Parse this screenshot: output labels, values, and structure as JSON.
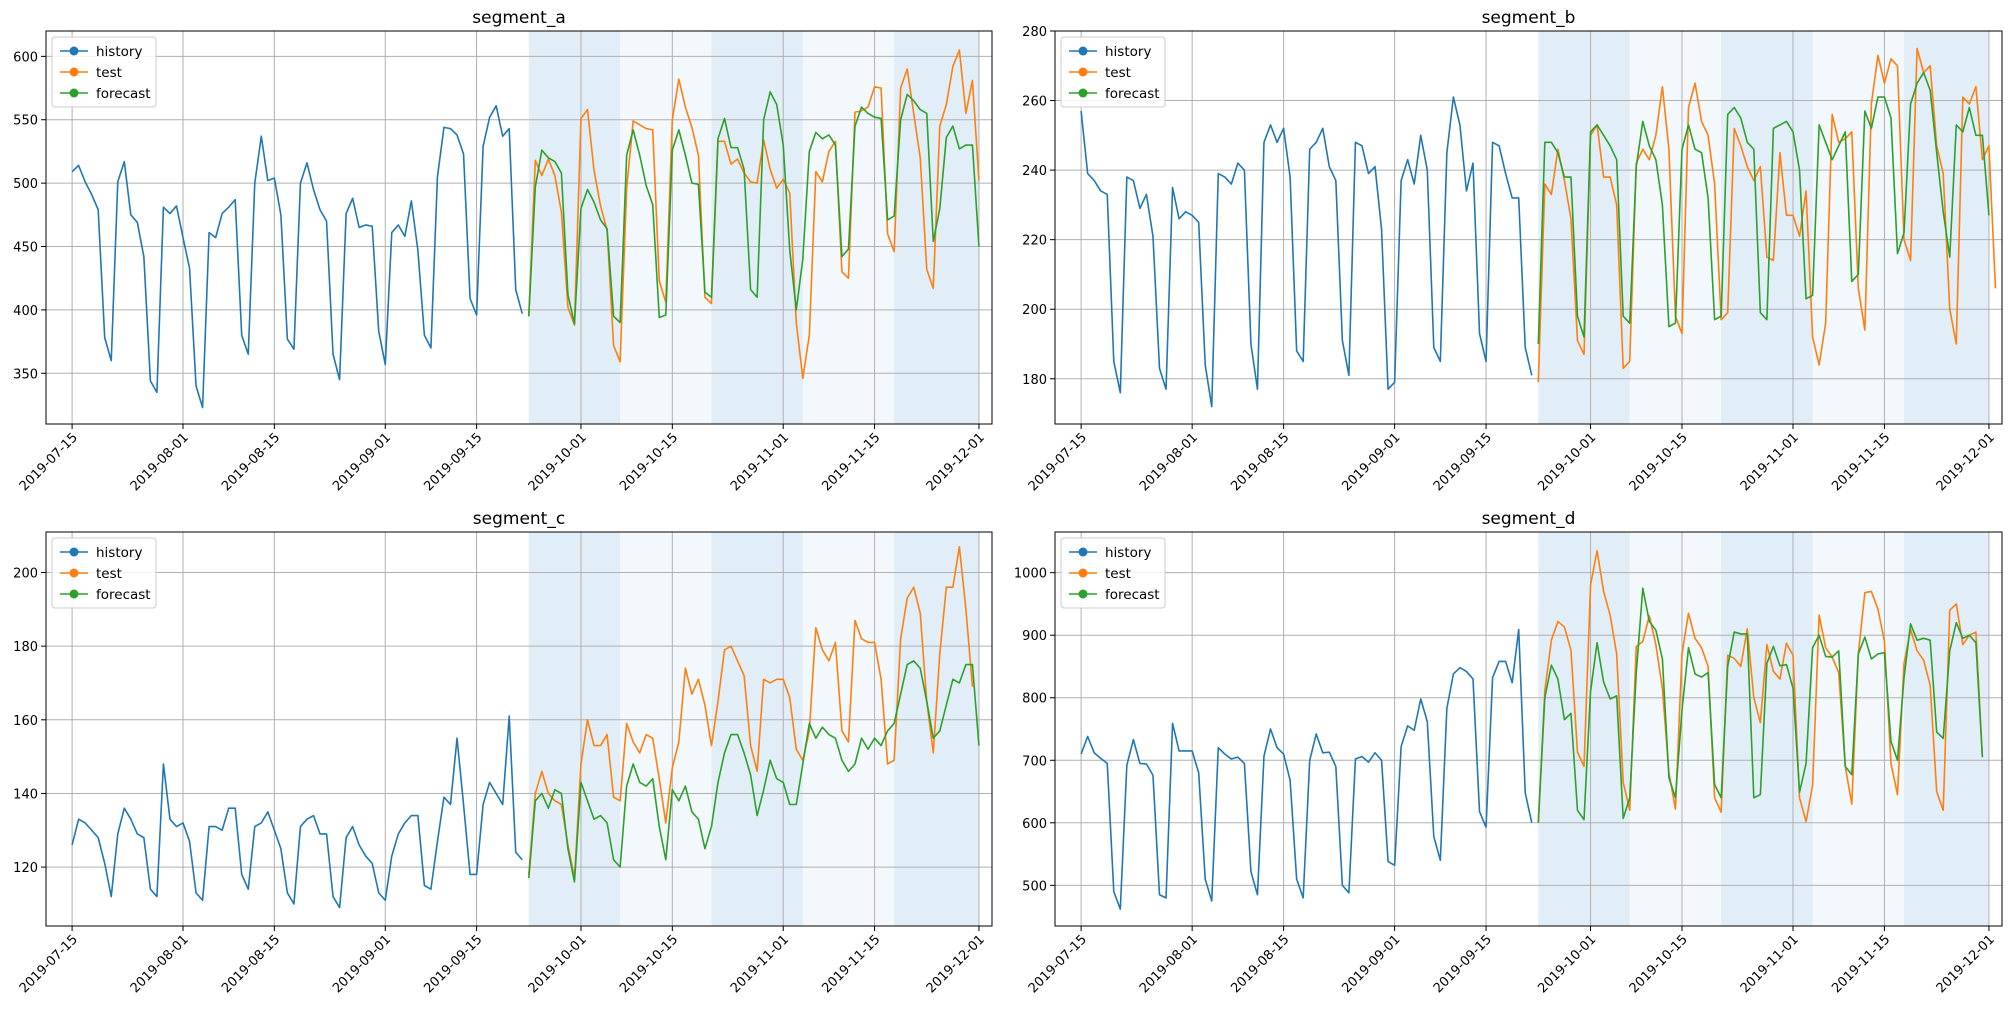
{
  "colors": {
    "history": "#1f77b4",
    "test": "#ff7f0e",
    "forecast": "#2ca02c",
    "band": "#cfe3f2",
    "grid": "#b0b0b0"
  },
  "chart_data": [
    {
      "type": "line",
      "title": "segment_a",
      "legend": "upper-left",
      "grid": true,
      "ylim": [
        310,
        620
      ],
      "yticks": [
        "350",
        "400",
        "450",
        "500",
        "550",
        "600"
      ],
      "xlim": [
        "2019-07-11",
        "2019-12-03"
      ],
      "xticks": [
        "2019-07-15",
        "2019-08-01",
        "2019-08-15",
        "2019-09-01",
        "2019-09-15",
        "2019-10-01",
        "2019-10-15",
        "2019-11-01",
        "2019-11-15",
        "2019-12-01"
      ],
      "highlight_bands": [
        [
          "2019-09-23",
          "2019-10-07"
        ],
        [
          "2019-10-21",
          "2019-11-04"
        ],
        [
          "2019-11-18",
          "2019-12-01"
        ]
      ],
      "shade_range": [
        "2019-09-23",
        "2019-12-01"
      ],
      "series": [
        {
          "name": "history",
          "x_start": "2019-07-15",
          "values": [
            509,
            514,
            501,
            491,
            479,
            378,
            360,
            501,
            517,
            475,
            469,
            442,
            344,
            335,
            481,
            476,
            482,
            457,
            433,
            340,
            323,
            461,
            457,
            476,
            481,
            487,
            380,
            365,
            500,
            537,
            502,
            504,
            475,
            377,
            369,
            500,
            516,
            495,
            479,
            470,
            365,
            345,
            476,
            488,
            465,
            467,
            466,
            383,
            357,
            461,
            467,
            458,
            486,
            447,
            380,
            370,
            505,
            544,
            543,
            538,
            523,
            409,
            396,
            529,
            552,
            561,
            537,
            543,
            416,
            397
          ]
        },
        {
          "name": "test",
          "x_start": "2019-09-23",
          "values": [
            395,
            518,
            506,
            519,
            506,
            477,
            402,
            388,
            551,
            558,
            510,
            482,
            463,
            372,
            359,
            496,
            549,
            546,
            543,
            542,
            423,
            406,
            550,
            582,
            560,
            544,
            522,
            410,
            405,
            533,
            533,
            515,
            519,
            508,
            501,
            500,
            534,
            511,
            496,
            503,
            492,
            390,
            346,
            380,
            509,
            501,
            525,
            533,
            430,
            425,
            556,
            557,
            560,
            576,
            575,
            460,
            446,
            575,
            590,
            555,
            520,
            432,
            417,
            545,
            562,
            592,
            605,
            555,
            581,
            502
          ]
        },
        {
          "name": "forecast",
          "x_start": "2019-09-23",
          "values": [
            395,
            497,
            526,
            520,
            517,
            508,
            412,
            389,
            480,
            495,
            485,
            471,
            464,
            395,
            390,
            522,
            542,
            522,
            498,
            483,
            394,
            396,
            526,
            542,
            522,
            500,
            499,
            414,
            410,
            535,
            551,
            528,
            528,
            511,
            416,
            410,
            550,
            572,
            562,
            530,
            447,
            400,
            440,
            525,
            540,
            535,
            538,
            530,
            442,
            448,
            545,
            560,
            555,
            552,
            551,
            471,
            474,
            550,
            570,
            565,
            558,
            555,
            454,
            480,
            536,
            545,
            527,
            530,
            530,
            450
          ]
        }
      ]
    },
    {
      "type": "line",
      "title": "segment_b",
      "legend": "upper-left",
      "grid": true,
      "ylim": [
        167,
        280
      ],
      "yticks": [
        "180",
        "200",
        "220",
        "240",
        "260",
        "280"
      ],
      "xlim": [
        "2019-07-11",
        "2019-12-03"
      ],
      "xticks": [
        "2019-07-15",
        "2019-08-01",
        "2019-08-15",
        "2019-09-01",
        "2019-09-15",
        "2019-10-01",
        "2019-10-15",
        "2019-11-01",
        "2019-11-15",
        "2019-12-01"
      ],
      "highlight_bands": [
        [
          "2019-09-23",
          "2019-10-07"
        ],
        [
          "2019-10-21",
          "2019-11-04"
        ],
        [
          "2019-11-18",
          "2019-12-01"
        ]
      ],
      "shade_range": [
        "2019-09-23",
        "2019-12-01"
      ],
      "series": [
        {
          "name": "history",
          "x_start": "2019-07-15",
          "values": [
            257,
            239,
            237,
            234,
            233,
            185,
            176,
            238,
            237,
            229,
            233,
            221,
            183,
            177,
            235,
            226,
            228,
            227,
            225,
            184,
            172,
            239,
            238,
            236,
            242,
            240,
            190,
            177,
            248,
            253,
            248,
            252,
            238,
            188,
            185,
            246,
            248,
            252,
            241,
            237,
            191,
            181,
            248,
            247,
            239,
            241,
            223,
            177,
            179,
            237,
            243,
            236,
            250,
            240,
            189,
            185,
            245,
            261,
            253,
            234,
            242,
            193,
            185,
            248,
            247,
            239,
            232,
            232,
            189,
            181
          ]
        },
        {
          "name": "test",
          "x_start": "2019-09-23",
          "values": [
            179,
            236,
            233,
            246,
            237,
            226,
            191,
            187,
            250,
            253,
            238,
            238,
            230,
            183,
            185,
            242,
            246,
            243,
            250,
            264,
            246,
            198,
            193,
            258,
            265,
            254,
            250,
            236,
            197,
            199,
            252,
            247,
            241,
            237,
            241,
            215,
            214,
            245,
            227,
            227,
            221,
            234,
            192,
            184,
            196,
            256,
            248,
            249,
            251,
            206,
            194,
            259,
            273,
            265,
            272,
            270,
            220,
            214,
            275,
            268,
            270,
            247,
            239,
            200,
            190,
            261,
            259,
            264,
            243,
            247,
            206
          ]
        },
        {
          "name": "forecast",
          "x_start": "2019-09-23",
          "values": [
            190,
            248,
            248,
            245,
            238,
            238,
            198,
            192,
            251,
            253,
            250,
            247,
            243,
            198,
            196,
            241,
            254,
            247,
            243,
            230,
            195,
            196,
            246,
            253,
            246,
            245,
            232,
            197,
            198,
            256,
            258,
            255,
            248,
            246,
            199,
            197,
            252,
            253,
            254,
            251,
            240,
            203,
            204,
            253,
            248,
            243,
            247,
            251,
            208,
            210,
            257,
            252,
            261,
            261,
            255,
            216,
            222,
            259,
            265,
            268,
            263,
            245,
            228,
            215,
            253,
            251,
            258,
            250,
            250,
            227
          ]
        }
      ]
    },
    {
      "type": "line",
      "title": "segment_c",
      "legend": "upper-left",
      "grid": true,
      "ylim": [
        104,
        211
      ],
      "yticks": [
        "120",
        "140",
        "160",
        "180",
        "200"
      ],
      "xlim": [
        "2019-07-11",
        "2019-12-03"
      ],
      "xticks": [
        "2019-07-15",
        "2019-08-01",
        "2019-08-15",
        "2019-09-01",
        "2019-09-15",
        "2019-10-01",
        "2019-10-15",
        "2019-11-01",
        "2019-11-15",
        "2019-12-01"
      ],
      "highlight_bands": [
        [
          "2019-09-23",
          "2019-10-07"
        ],
        [
          "2019-10-21",
          "2019-11-04"
        ],
        [
          "2019-11-18",
          "2019-12-01"
        ]
      ],
      "shade_range": [
        "2019-09-23",
        "2019-12-01"
      ],
      "series": [
        {
          "name": "history",
          "x_start": "2019-07-15",
          "values": [
            126,
            133,
            132,
            130,
            128,
            121,
            112,
            129,
            136,
            133,
            129,
            128,
            114,
            112,
            148,
            133,
            131,
            132,
            127,
            113,
            111,
            131,
            131,
            130,
            136,
            136,
            118,
            114,
            131,
            132,
            135,
            130,
            125,
            113,
            110,
            131,
            133,
            134,
            129,
            129,
            112,
            109,
            128,
            131,
            126,
            123,
            121,
            113,
            111,
            123,
            129,
            132,
            134,
            134,
            115,
            114,
            127,
            139,
            137,
            155,
            137,
            118,
            118,
            137,
            143,
            140,
            137,
            161,
            124,
            122
          ]
        },
        {
          "name": "test",
          "x_start": "2019-09-23",
          "values": [
            118,
            140,
            146,
            140,
            138,
            137,
            126,
            117,
            148,
            160,
            153,
            153,
            156,
            139,
            138,
            159,
            154,
            151,
            156,
            155,
            144,
            132,
            147,
            154,
            174,
            167,
            171,
            164,
            153,
            165,
            179,
            180,
            176,
            172,
            153,
            146,
            171,
            170,
            171,
            171,
            166,
            152,
            149,
            157,
            185,
            179,
            176,
            181,
            157,
            154,
            187,
            182,
            181,
            181,
            171,
            148,
            149,
            182,
            193,
            196,
            189,
            165,
            151,
            178,
            196,
            196,
            207,
            190,
            169
          ]
        },
        {
          "name": "forecast",
          "x_start": "2019-09-23",
          "values": [
            117,
            138,
            140,
            136,
            141,
            140,
            125,
            116,
            143,
            138,
            133,
            134,
            132,
            122,
            120,
            142,
            148,
            143,
            142,
            144,
            131,
            122,
            141,
            138,
            142,
            135,
            133,
            125,
            131,
            143,
            151,
            156,
            156,
            151,
            145,
            134,
            141,
            149,
            144,
            143,
            137,
            137,
            148,
            159,
            155,
            158,
            156,
            155,
            149,
            146,
            148,
            155,
            152,
            155,
            153,
            157,
            159,
            167,
            175,
            176,
            174,
            165,
            155,
            157,
            164,
            171,
            170,
            175,
            175,
            153
          ]
        }
      ]
    },
    {
      "type": "line",
      "title": "segment_d",
      "legend": "upper-left",
      "grid": true,
      "ylim": [
        435,
        1065
      ],
      "yticks": [
        "500",
        "600",
        "700",
        "800",
        "900",
        "1000"
      ],
      "xlim": [
        "2019-07-11",
        "2019-12-03"
      ],
      "xticks": [
        "2019-07-15",
        "2019-08-01",
        "2019-08-15",
        "2019-09-01",
        "2019-09-15",
        "2019-10-01",
        "2019-10-15",
        "2019-11-01",
        "2019-11-15",
        "2019-12-01"
      ],
      "highlight_bands": [
        [
          "2019-09-23",
          "2019-10-07"
        ],
        [
          "2019-10-21",
          "2019-11-04"
        ],
        [
          "2019-11-18",
          "2019-12-01"
        ]
      ],
      "shade_range": [
        "2019-09-23",
        "2019-12-01"
      ],
      "series": [
        {
          "name": "history",
          "x_start": "2019-07-15",
          "values": [
            710,
            738,
            712,
            703,
            695,
            490,
            462,
            692,
            733,
            695,
            694,
            676,
            485,
            480,
            759,
            715,
            715,
            715,
            680,
            510,
            475,
            720,
            710,
            702,
            705,
            695,
            522,
            485,
            707,
            750,
            720,
            710,
            668,
            510,
            480,
            700,
            742,
            712,
            713,
            690,
            500,
            488,
            702,
            706,
            697,
            712,
            700,
            538,
            532,
            722,
            755,
            748,
            798,
            762,
            578,
            540,
            783,
            838,
            848,
            842,
            830,
            618,
            593,
            832,
            858,
            858,
            824,
            909,
            648,
            600
          ]
        },
        {
          "name": "test",
          "x_start": "2019-09-23",
          "values": [
            600,
            811,
            892,
            922,
            913,
            876,
            713,
            690,
            980,
            1035,
            970,
            932,
            870,
            665,
            620,
            882,
            890,
            931,
            885,
            815,
            680,
            622,
            870,
            935,
            895,
            880,
            850,
            640,
            617,
            868,
            863,
            850,
            910,
            800,
            760,
            885,
            842,
            830,
            887,
            868,
            640,
            602,
            660,
            932,
            880,
            865,
            840,
            690,
            630,
            870,
            968,
            970,
            942,
            890,
            695,
            645,
            855,
            909,
            875,
            860,
            820,
            650,
            620,
            940,
            950,
            885,
            900,
            905,
            705
          ]
        },
        {
          "name": "forecast",
          "x_start": "2019-09-23",
          "values": [
            600,
            800,
            852,
            830,
            765,
            775,
            620,
            605,
            810,
            888,
            825,
            798,
            803,
            607,
            640,
            840,
            975,
            922,
            908,
            862,
            672,
            640,
            780,
            880,
            838,
            833,
            840,
            661,
            640,
            850,
            905,
            902,
            902,
            640,
            645,
            855,
            882,
            851,
            853,
            815,
            649,
            695,
            880,
            900,
            866,
            865,
            875,
            690,
            677,
            870,
            897,
            862,
            870,
            872,
            730,
            700,
            832,
            918,
            892,
            895,
            892,
            745,
            735,
            875,
            920,
            895,
            900,
            888,
            705
          ]
        }
      ]
    }
  ]
}
